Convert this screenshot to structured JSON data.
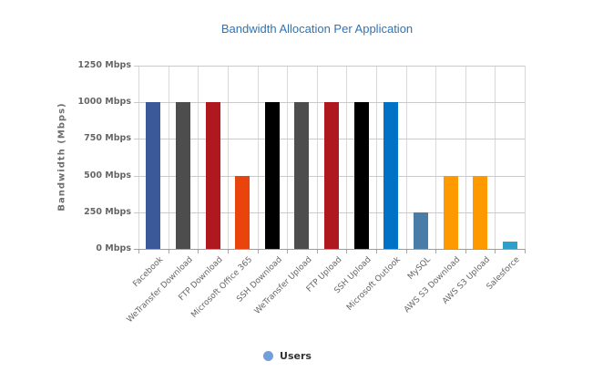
{
  "chart_data": {
    "type": "bar",
    "title": "Bandwidth Allocation Per Application",
    "xlabel": "",
    "ylabel": "Bandwidth (Mbps)",
    "categories": [
      "Facebook",
      "WeTransfer Download",
      "FTP Download",
      "Microsoft Office 365",
      "SSH Download",
      "WeTransfer Upload",
      "FTP Upload",
      "SSH Upload",
      "Microsoft Outlook",
      "MySQL",
      "AWS S3 Download",
      "AWS S3 Upload",
      "Salesforce"
    ],
    "series": [
      {
        "name": "Users",
        "values": [
          1000,
          1000,
          1000,
          500,
          1000,
          1000,
          1000,
          1000,
          1000,
          250,
          500,
          500,
          50
        ]
      }
    ],
    "bar_colors": [
      "#3B5998",
      "#4D4D4D",
      "#B01820",
      "#E8440C",
      "#000000",
      "#4D4D4D",
      "#B01820",
      "#000000",
      "#0072C6",
      "#4A7CA8",
      "#FF9900",
      "#FF9900",
      "#2E9FC9"
    ],
    "yticks": [
      0,
      250,
      500,
      750,
      1000,
      1250
    ],
    "ytick_labels": [
      "0 Mbps",
      "250 Mbps",
      "500 Mbps",
      "750 Mbps",
      "1000 Mbps",
      "1250 Mbps"
    ],
    "ylim": [
      0,
      1250
    ],
    "grid": true,
    "legend_position": "bottom",
    "legend_marker_color": "#6FA0DC"
  },
  "colors": {
    "title_text": "#2E74B5",
    "axis_text": "#666666",
    "gridline": "#CACACA",
    "axis_line": "#9E9E9E",
    "background": "#FFFFFF",
    "legend_text": "#333333"
  }
}
